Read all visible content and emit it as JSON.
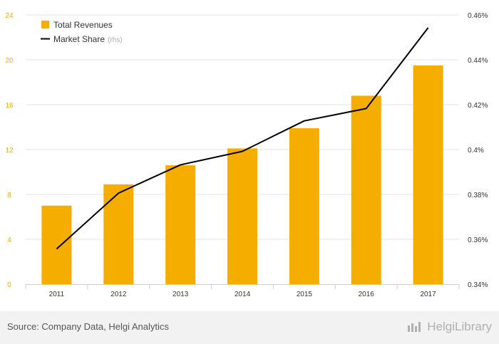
{
  "chart_data": {
    "type": "bar",
    "categories": [
      "2011",
      "2012",
      "2013",
      "2014",
      "2015",
      "2016",
      "2017"
    ],
    "series": [
      {
        "name": "Total Revenues",
        "type": "bar",
        "axis": "left",
        "color": "#f5ad00",
        "values": [
          7.0,
          8.9,
          10.6,
          12.1,
          13.9,
          16.8,
          19.5
        ]
      },
      {
        "name": "Market Share",
        "type": "line",
        "axis": "right",
        "color": "#000000",
        "values": [
          0.3557,
          0.3806,
          0.3932,
          0.3992,
          0.4128,
          0.4183,
          0.4543
        ]
      }
    ],
    "legend": {
      "items": [
        {
          "name": "Total Revenues",
          "suffix": ""
        },
        {
          "name": "Market Share",
          "suffix": "(rhs)"
        }
      ],
      "placement": "top-left"
    },
    "y_left": {
      "ylim": [
        0,
        24
      ],
      "ticks": [
        "0",
        "4",
        "8",
        "12",
        "16",
        "20",
        "24"
      ],
      "tick_color": "#f5ad00"
    },
    "y_right": {
      "ylim": [
        0.34,
        0.46
      ],
      "ticks": [
        "0.34%",
        "0.36%",
        "0.38%",
        "0.4%",
        "0.42%",
        "0.44%",
        "0.46%"
      ]
    },
    "grid": true,
    "title": "",
    "xlabel": "",
    "ylabel": ""
  },
  "footer": {
    "source": "Source: Company Data, Helgi Analytics",
    "brand": "HelgiLibrary"
  }
}
